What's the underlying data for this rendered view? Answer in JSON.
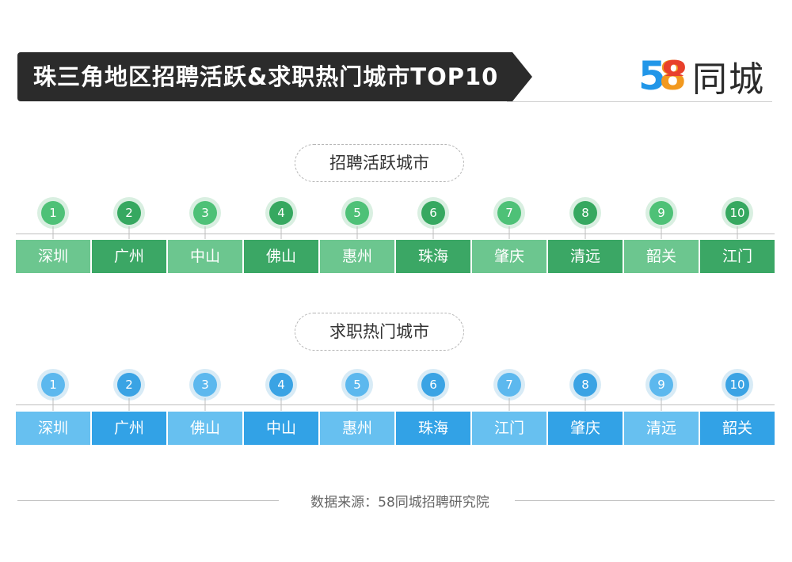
{
  "header": {
    "title": "珠三角地区招聘活跃&求职热门城市TOP10",
    "logo_digits": "58",
    "logo_text": "同城",
    "logo_colors": [
      "#2196e8",
      "#f2991f",
      "#e8402c"
    ]
  },
  "recruit": {
    "label": "招聘活跃城市",
    "ranks": [
      "1",
      "2",
      "3",
      "4",
      "5",
      "6",
      "7",
      "8",
      "9",
      "10"
    ],
    "cities": [
      "深圳",
      "广州",
      "中山",
      "佛山",
      "惠州",
      "珠海",
      "肇庆",
      "清远",
      "韶关",
      "江门"
    ],
    "colors": {
      "light": "#6cc68f",
      "dark": "#3ba765"
    }
  },
  "jobseek": {
    "label": "求职热门城市",
    "ranks": [
      "1",
      "2",
      "3",
      "4",
      "5",
      "6",
      "7",
      "8",
      "9",
      "10"
    ],
    "cities": [
      "深圳",
      "广州",
      "佛山",
      "中山",
      "惠州",
      "珠海",
      "江门",
      "肇庆",
      "清远",
      "韶关"
    ],
    "colors": {
      "light": "#67c0f0",
      "dark": "#32a2e6"
    }
  },
  "footer": {
    "source": "数据来源：58同城招聘研究院"
  }
}
